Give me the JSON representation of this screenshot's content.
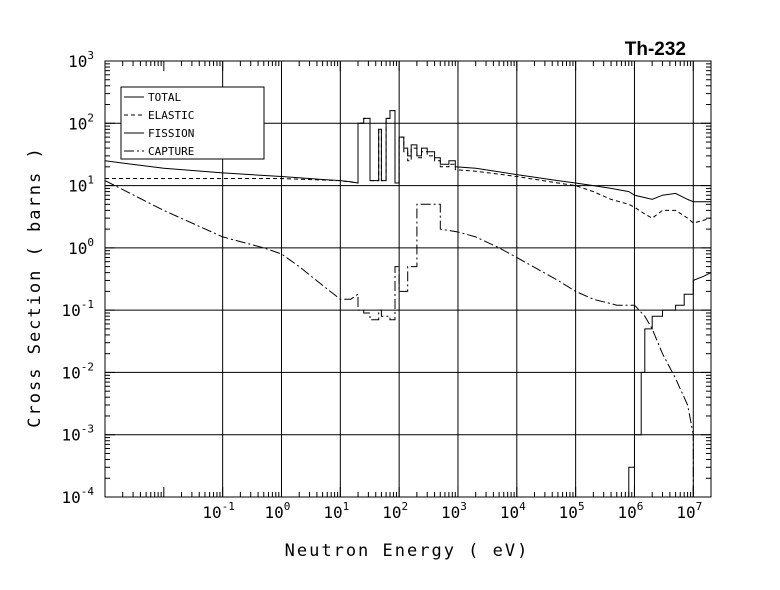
{
  "chart_data": {
    "type": "line",
    "title": "Th-232",
    "xlabel": "Neutron Energy ( eV)",
    "ylabel": "Cross Section ( barns )",
    "x_scale": "log",
    "y_scale": "log",
    "xlim": [
      0.001,
      20000000
    ],
    "ylim": [
      0.0001,
      1000
    ],
    "grid": true,
    "legend_position": "top-left",
    "x_ticks": [
      {
        "base": "10",
        "exp": "-1",
        "value": 0.1
      },
      {
        "base": "10",
        "exp": "0",
        "value": 1
      },
      {
        "base": "10",
        "exp": "1",
        "value": 10
      },
      {
        "base": "10",
        "exp": "2",
        "value": 100
      },
      {
        "base": "10",
        "exp": "3",
        "value": 1000
      },
      {
        "base": "10",
        "exp": "4",
        "value": 10000
      },
      {
        "base": "10",
        "exp": "5",
        "value": 100000
      },
      {
        "base": "10",
        "exp": "6",
        "value": 1000000
      },
      {
        "base": "10",
        "exp": "7",
        "value": 10000000
      }
    ],
    "y_ticks": [
      {
        "base": "10",
        "exp": "-4",
        "value": 0.0001
      },
      {
        "base": "10",
        "exp": "-3",
        "value": 0.001
      },
      {
        "base": "10",
        "exp": "-2",
        "value": 0.01
      },
      {
        "base": "10",
        "exp": "-1",
        "value": 0.1
      },
      {
        "base": "10",
        "exp": "0",
        "value": 1
      },
      {
        "base": "10",
        "exp": "1",
        "value": 10
      },
      {
        "base": "10",
        "exp": "2",
        "value": 100
      },
      {
        "base": "10",
        "exp": "3",
        "value": 1000
      }
    ],
    "series": [
      {
        "name": "TOTAL",
        "dash": "",
        "points": [
          [
            0.001,
            25
          ],
          [
            0.01,
            19
          ],
          [
            0.1,
            16
          ],
          [
            1,
            14
          ],
          [
            5,
            12.5
          ],
          [
            10,
            12
          ],
          [
            15,
            11.5
          ],
          [
            20,
            11
          ],
          [
            20,
            100
          ],
          [
            25,
            100
          ],
          [
            25,
            120
          ],
          [
            32,
            120
          ],
          [
            32,
            12
          ],
          [
            45,
            12
          ],
          [
            45,
            80
          ],
          [
            50,
            80
          ],
          [
            50,
            12
          ],
          [
            60,
            12
          ],
          [
            60,
            120
          ],
          [
            70,
            120
          ],
          [
            70,
            160
          ],
          [
            85,
            160
          ],
          [
            85,
            11
          ],
          [
            100,
            11
          ],
          [
            100,
            60
          ],
          [
            120,
            60
          ],
          [
            120,
            40
          ],
          [
            140,
            40
          ],
          [
            140,
            30
          ],
          [
            160,
            30
          ],
          [
            160,
            45
          ],
          [
            200,
            45
          ],
          [
            200,
            30
          ],
          [
            240,
            30
          ],
          [
            240,
            40
          ],
          [
            300,
            40
          ],
          [
            300,
            35
          ],
          [
            400,
            35
          ],
          [
            400,
            28
          ],
          [
            500,
            28
          ],
          [
            500,
            22
          ],
          [
            700,
            22
          ],
          [
            700,
            25
          ],
          [
            900,
            25
          ],
          [
            900,
            20
          ],
          [
            2000,
            19
          ],
          [
            10000,
            15
          ],
          [
            50000,
            12
          ],
          [
            100000,
            11
          ],
          [
            200000,
            10
          ],
          [
            400000,
            9
          ],
          [
            800000,
            8
          ],
          [
            1000000,
            7
          ],
          [
            2000000,
            6
          ],
          [
            3000000,
            7
          ],
          [
            5000000,
            7.5
          ],
          [
            8000000,
            6
          ],
          [
            10000000,
            5.5
          ],
          [
            20000000,
            5.5
          ]
        ]
      },
      {
        "name": "ELASTIC",
        "dash": "4,3",
        "points": [
          [
            0.001,
            13
          ],
          [
            0.1,
            13
          ],
          [
            1,
            13
          ],
          [
            10,
            12
          ],
          [
            20,
            11
          ],
          [
            20,
            100
          ],
          [
            25,
            100
          ],
          [
            25,
            120
          ],
          [
            32,
            120
          ],
          [
            32,
            12
          ],
          [
            45,
            12
          ],
          [
            45,
            80
          ],
          [
            50,
            80
          ],
          [
            50,
            12
          ],
          [
            60,
            12
          ],
          [
            60,
            120
          ],
          [
            70,
            120
          ],
          [
            70,
            160
          ],
          [
            85,
            160
          ],
          [
            85,
            11
          ],
          [
            100,
            11
          ],
          [
            100,
            60
          ],
          [
            120,
            60
          ],
          [
            120,
            35
          ],
          [
            140,
            35
          ],
          [
            140,
            25
          ],
          [
            160,
            25
          ],
          [
            160,
            40
          ],
          [
            200,
            40
          ],
          [
            200,
            28
          ],
          [
            240,
            28
          ],
          [
            240,
            35
          ],
          [
            300,
            35
          ],
          [
            300,
            30
          ],
          [
            400,
            30
          ],
          [
            400,
            25
          ],
          [
            500,
            25
          ],
          [
            500,
            20
          ],
          [
            700,
            20
          ],
          [
            700,
            22
          ],
          [
            900,
            22
          ],
          [
            900,
            18
          ],
          [
            2000,
            17
          ],
          [
            10000,
            14
          ],
          [
            50000,
            11
          ],
          [
            100000,
            10
          ],
          [
            200000,
            8
          ],
          [
            400000,
            6
          ],
          [
            800000,
            5
          ],
          [
            1000000,
            4.5
          ],
          [
            1500000,
            3.5
          ],
          [
            2000000,
            3
          ],
          [
            3000000,
            4
          ],
          [
            5000000,
            4
          ],
          [
            8000000,
            3
          ],
          [
            10000000,
            2.5
          ],
          [
            20000000,
            3
          ]
        ]
      },
      {
        "name": "FISSION",
        "dash": "",
        "points": [
          [
            500000,
            0.0001
          ],
          [
            800000,
            0.0001
          ],
          [
            800000,
            0.0003
          ],
          [
            1000000,
            0.0003
          ],
          [
            1000000,
            0.001
          ],
          [
            1300000,
            0.001
          ],
          [
            1300000,
            0.01
          ],
          [
            1500000,
            0.01
          ],
          [
            1500000,
            0.05
          ],
          [
            2000000,
            0.05
          ],
          [
            2000000,
            0.08
          ],
          [
            3000000,
            0.08
          ],
          [
            3000000,
            0.1
          ],
          [
            5000000,
            0.1
          ],
          [
            5000000,
            0.12
          ],
          [
            7000000,
            0.12
          ],
          [
            7000000,
            0.18
          ],
          [
            10000000,
            0.18
          ],
          [
            10000000,
            0.3
          ],
          [
            15000000,
            0.35
          ],
          [
            20000000,
            0.4
          ]
        ]
      },
      {
        "name": "CAPTURE",
        "dash": "10,3,2,3",
        "points": [
          [
            0.001,
            12
          ],
          [
            0.01,
            4
          ],
          [
            0.1,
            1.5
          ],
          [
            0.5,
            1
          ],
          [
            1,
            0.8
          ],
          [
            2,
            0.5
          ],
          [
            5,
            0.25
          ],
          [
            10,
            0.15
          ],
          [
            15,
            0.15
          ],
          [
            20,
            0.18
          ],
          [
            20,
            0.1
          ],
          [
            25,
            0.1
          ],
          [
            25,
            0.09
          ],
          [
            32,
            0.09
          ],
          [
            32,
            0.07
          ],
          [
            45,
            0.07
          ],
          [
            45,
            0.1
          ],
          [
            50,
            0.1
          ],
          [
            50,
            0.08
          ],
          [
            70,
            0.08
          ],
          [
            70,
            0.07
          ],
          [
            85,
            0.07
          ],
          [
            85,
            0.5
          ],
          [
            100,
            0.5
          ],
          [
            100,
            0.2
          ],
          [
            140,
            0.2
          ],
          [
            140,
            0.5
          ],
          [
            200,
            0.5
          ],
          [
            200,
            5
          ],
          [
            500,
            5
          ],
          [
            500,
            2
          ],
          [
            1000,
            1.8
          ],
          [
            2000,
            1.5
          ],
          [
            5000,
            1
          ],
          [
            10000,
            0.7
          ],
          [
            50000,
            0.3
          ],
          [
            100000,
            0.2
          ],
          [
            200000,
            0.15
          ],
          [
            500000,
            0.12
          ],
          [
            1000000,
            0.12
          ],
          [
            1500000,
            0.08
          ],
          [
            2000000,
            0.05
          ],
          [
            3000000,
            0.02
          ],
          [
            5000000,
            0.008
          ],
          [
            8000000,
            0.003
          ],
          [
            10000000,
            0.001
          ],
          [
            10000000,
            0.0001
          ]
        ]
      }
    ]
  }
}
